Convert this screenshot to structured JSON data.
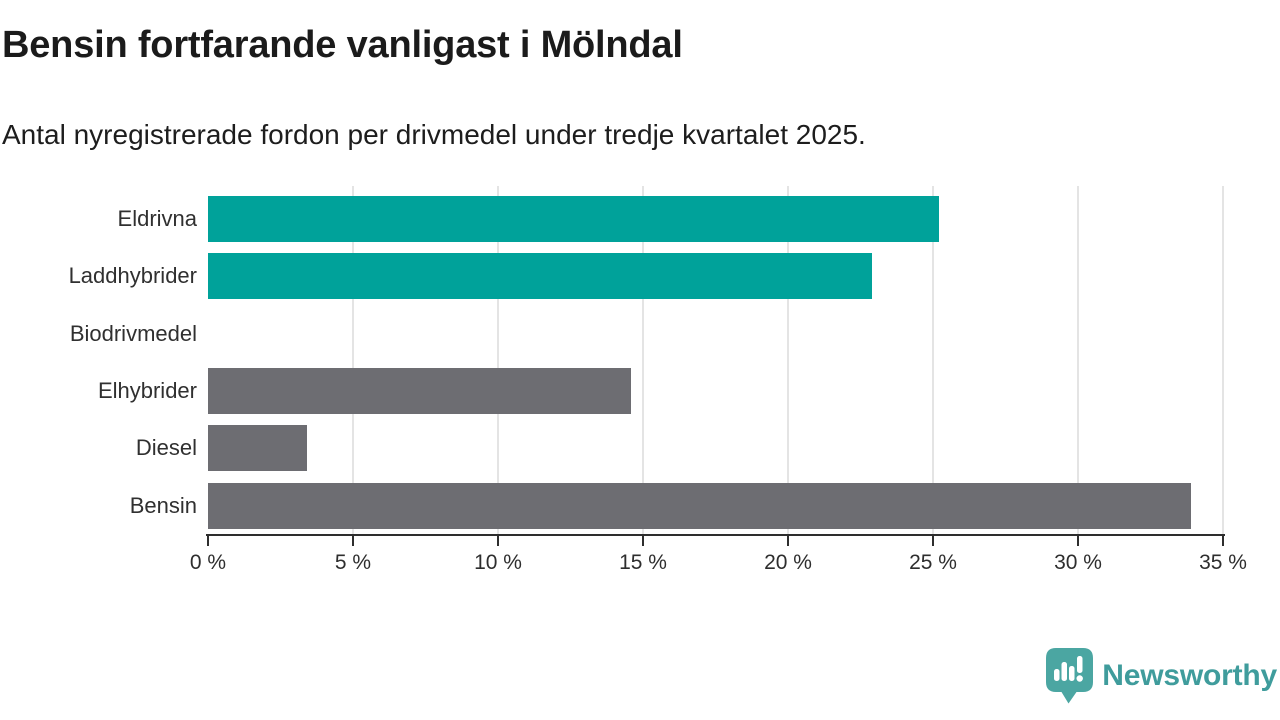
{
  "header": {
    "title": "Bensin fortfarande vanligast i Mölndal",
    "subtitle": "Antal nyregistrerade fordon per drivmedel under tredje kvartalet 2025."
  },
  "chart_data": {
    "type": "bar",
    "orientation": "horizontal",
    "title": "Bensin fortfarande vanligast i Mölndal",
    "subtitle": "Antal nyregistrerade fordon per drivmedel under tredje kvartalet 2025.",
    "categories": [
      "Eldrivna",
      "Laddhybrider",
      "Biodrivmedel",
      "Elhybrider",
      "Diesel",
      "Bensin"
    ],
    "values": [
      25.2,
      22.9,
      0,
      14.6,
      3.4,
      33.9
    ],
    "highlighted": [
      true,
      true,
      false,
      false,
      false,
      false
    ],
    "unit": "%",
    "xlabel": "",
    "ylabel": "",
    "xlim": [
      0,
      35
    ],
    "x_ticks": [
      0,
      5,
      10,
      15,
      20,
      25,
      30,
      35
    ],
    "x_tick_suffix": " %",
    "grid": "vertical-only",
    "legend": "none",
    "colors": {
      "highlight": "#00a29a",
      "default": "#6d6d72"
    }
  },
  "footer": {
    "brand": "Newsworthy",
    "logo_icon": "newsworthy-speech-bubble-bar-chart-icon",
    "brand_color": "#3f9c9c",
    "mark_color": "#4ba6a2"
  }
}
